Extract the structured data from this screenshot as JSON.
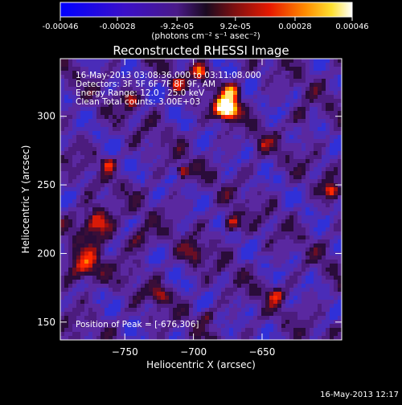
{
  "colorbar": {
    "tick_labels": [
      "-0.00046",
      "-0.00028",
      "-9.2e-05",
      "9.2e-05",
      "0.00028",
      "0.00046"
    ],
    "tick_values": [
      -0.00046,
      -0.00028,
      -9.2e-05,
      9.2e-05,
      0.00028,
      0.00046
    ],
    "range": [
      -0.00046,
      0.00046
    ],
    "unit_label": "(photons cm⁻² s⁻¹ asec⁻²)"
  },
  "plot": {
    "title": "Reconstructed RHESSI Image",
    "info_lines": [
      "16-May-2013 03:08:36.000 to 03:11:08.000",
      "Detectors: 3F 5F 6F 7F 8F 9F, AM",
      "Energy Range: 12.0 - 25.0 keV",
      "Clean     Total counts: 3.00E+03"
    ],
    "peak_label": "Position of Peak = [-676,306]",
    "footer_timestamp": "16-May-2013 12:17"
  },
  "chart_data": {
    "type": "heatmap",
    "title": "Reconstructed RHESSI Image",
    "xlabel": "Heliocentric X (arcsec)",
    "ylabel": "Heliocentric Y (arcsec)",
    "xlim": [
      -797,
      -592
    ],
    "ylim": [
      137,
      342
    ],
    "x_ticks": [
      -750,
      -700,
      -650
    ],
    "y_ticks": [
      150,
      200,
      250,
      300
    ],
    "x_tick_labels": [
      "−750",
      "−700",
      "−650"
    ],
    "y_tick_labels": [
      "150",
      "200",
      "250",
      "300"
    ],
    "peak": [
      -676,
      306
    ],
    "colormap": "blue-purple-red-yellow-white",
    "grid": false
  }
}
